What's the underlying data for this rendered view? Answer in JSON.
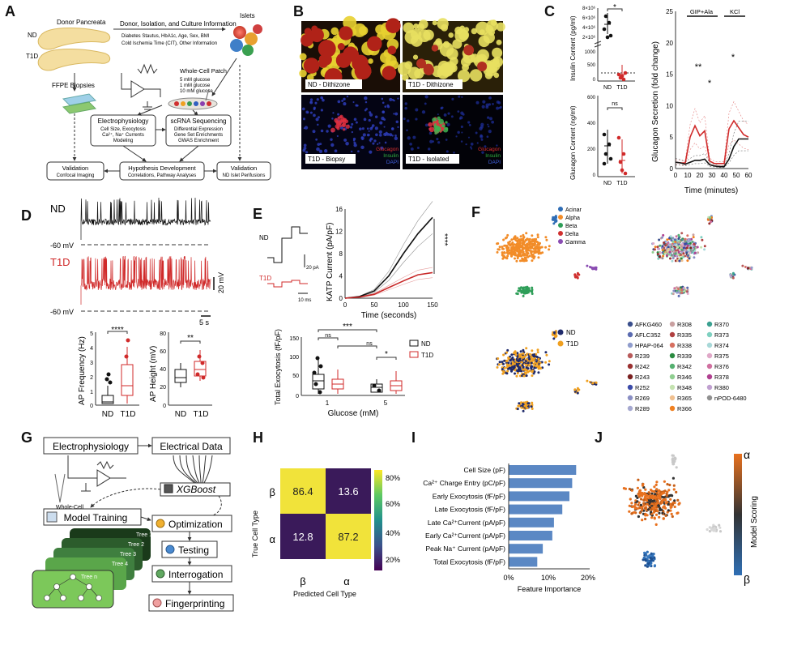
{
  "panel_letters": [
    "A",
    "B",
    "C",
    "D",
    "E",
    "F",
    "G",
    "H",
    "I",
    "J"
  ],
  "A": {
    "donor_pancreata": "Donor Pancreata",
    "nd": "ND",
    "t1d": "T1D",
    "islets": "Islets",
    "donor_info_title": "Donor, Isolation, and Culture Information",
    "donor_info_1": "Diabetes Stautus, HbA1c, Age, Sex, BMI",
    "donor_info_2": "Cold Ischemia Time (CIT), Other Information",
    "ffpe": "FFPE Biopsies",
    "patch": "Whole-Cell Patch",
    "glucose": [
      "5 mM glucose",
      "1 mM glucose",
      "10 mM glucose"
    ],
    "ephys_title": "Electrophysiology",
    "ephys_lines": [
      "Cell Size, Exocytosis",
      "Ca²⁺, Na⁺ Currents",
      "Modeling"
    ],
    "scrna_title": "scRNA Sequencing",
    "scrna_lines": [
      "Differential Expression",
      "Gene Set Enrichments",
      "GWAS Enrichment"
    ],
    "val1_title": "Validation",
    "val1_sub": "Confocal Imaging",
    "hypo_title": "Hypothesis Development",
    "hypo_sub": "Correlations, Pathway Analyses",
    "val2_title": "Validation",
    "val2_sub": "ND Islet Perifusions"
  },
  "B": {
    "labels": [
      "ND - Dithizone",
      "T1D - Dithizone",
      "T1D - Biopsy",
      "T1D - Isolated"
    ],
    "stain": [
      "Glucagon",
      "Insulin",
      "DAPI"
    ]
  },
  "C": {
    "ins_ylabel": "Insulin Content (pg/ml)",
    "ins_ticks_top": [
      "8×10⁶",
      "6×10⁶",
      "4×10⁶",
      "2×10⁶"
    ],
    "ins_ticks_bottom": [
      "1000",
      "500",
      "0"
    ],
    "ins_sig": "*",
    "glu_ylabel": "Glucagon Content (ng/ml)",
    "glu_ticks": [
      "600",
      "400",
      "200",
      "0"
    ],
    "glu_sig": "ns",
    "xcats": [
      "ND",
      "T1D"
    ],
    "sec_ylabel": "Glucagon Secretion (fold change)",
    "sec_xlabel": "Time (minutes)",
    "sec_yticks": [
      "25",
      "20",
      "15",
      "10",
      "5",
      "0"
    ],
    "sec_xticks": [
      "0",
      "10",
      "20",
      "30",
      "40",
      "50",
      "60"
    ],
    "stim1": "GIP+Ala",
    "stim2": "KCl",
    "sig1": "**",
    "sig2": "*",
    "sig3": "*"
  },
  "D": {
    "nd": "ND",
    "t1d": "T1D",
    "mv1": "-60 mV",
    "mv2": "-60 mV",
    "scale_v": "20 mV",
    "scale_t": "5 s",
    "freq_ylabel": "AP Frequency (Hz)",
    "freq_ticks": [
      "5",
      "4",
      "3",
      "2",
      "1",
      "0"
    ],
    "freq_sig": "****",
    "height_ylabel": "AP Height (mV)",
    "height_ticks": [
      "80",
      "60",
      "40",
      "20",
      "0"
    ],
    "height_sig": "**",
    "xcats": [
      "ND",
      "T1D"
    ]
  },
  "E": {
    "nd": "ND",
    "t1d": "T1D",
    "scale_pa": "20 pA",
    "scale_ms": "10 ms",
    "katp_ylabel": "KATP Current (pA/pF)",
    "katp_xlabel": "Time (seconds)",
    "katp_yticks": [
      "16",
      "12",
      "8",
      "4",
      "0"
    ],
    "katp_xticks": [
      "0",
      "50",
      "100",
      "150"
    ],
    "katp_sig": "****",
    "exo_ylabel": "Total Exocytosis (fF/pF)",
    "exo_xlabel": "Glucose (mM)",
    "exo_yticks": [
      "150",
      "100",
      "50",
      "0"
    ],
    "exo_xticks": [
      "1",
      "5"
    ],
    "exo_sig": [
      "ns",
      "***",
      "ns",
      "*"
    ],
    "legend": [
      "ND",
      "T1D"
    ]
  },
  "F": {
    "celltypes": [
      "Acinar",
      "Alpha",
      "Beta",
      "Delta",
      "Gamma"
    ],
    "celltype_colors": [
      "#2f6db5",
      "#f28c28",
      "#2e9e58",
      "#d0302f",
      "#8a4cb2"
    ],
    "status": [
      "ND",
      "T1D"
    ],
    "status_colors": [
      "#1f2a6b",
      "#f0a020"
    ],
    "donors_col1": [
      "AFKG460",
      "AFLC352",
      "HPAP-064",
      "R239",
      "R242",
      "R243",
      "R252",
      "R269",
      "R289"
    ],
    "donors_col2": [
      "R308",
      "R335",
      "R338",
      "R339",
      "R342",
      "R346",
      "R348",
      "R365",
      "R366"
    ],
    "donors_col3": [
      "R370",
      "R373",
      "R374",
      "R375",
      "R376",
      "R378",
      "R380",
      "nPOD-6480"
    ],
    "donor_colors_col1": [
      "#3a4f8c",
      "#5a6bb0",
      "#8f9ccc",
      "#b85a5a",
      "#9a3030",
      "#7a2020",
      "#3b4aa8",
      "#8a8fc4",
      "#a5a8d0"
    ],
    "donor_colors_col2": [
      "#c9a0a0",
      "#b04040",
      "#d77060",
      "#2a8a40",
      "#55b070",
      "#8fce90",
      "#c4e2b0",
      "#f0c090",
      "#f08020"
    ],
    "donor_colors_col3": [
      "#3aa090",
      "#7ed0c0",
      "#a8d8d8",
      "#e0a8c8",
      "#d070a0",
      "#b04090",
      "#c0a0d0",
      "#909090"
    ]
  },
  "G": {
    "ephys": "Electrophysiology",
    "electrical": "Electrical Data",
    "wholecell": "Whole-Cell Patch Clamp",
    "xgboost": "XGBoost",
    "training": "Model Training",
    "optimization": "Optimization",
    "testing": "Testing",
    "interrogation": "Interrogation",
    "fingerprinting": "Fingerprinting",
    "trees": [
      "Tree 1",
      "Tree 2",
      "Tree 3",
      "Tree 4",
      "Tree n"
    ]
  },
  "H": {
    "ylabel": "True Cell Type",
    "xlabel": "Predicted Cell Type",
    "row_labels": [
      "β",
      "α"
    ],
    "col_labels": [
      "β",
      "α"
    ],
    "cbar_ticks": [
      "80%",
      "60%",
      "40%",
      "20%"
    ]
  },
  "I": {
    "xlabel": "Feature Importance",
    "xticks": [
      "0%",
      "10%",
      "20%"
    ]
  },
  "J": {
    "cbar_label": "Model Scoring",
    "top": "α",
    "bottom": "β"
  },
  "chart_data": [
    {
      "id": "confusion_matrix",
      "type": "heatmap",
      "rows": [
        "β",
        "α"
      ],
      "cols": [
        "β",
        "α"
      ],
      "values": [
        [
          86.4,
          13.6
        ],
        [
          12.8,
          87.2
        ]
      ],
      "xlabel": "Predicted Cell Type",
      "ylabel": "True Cell Type"
    },
    {
      "id": "feature_importance",
      "type": "bar",
      "orientation": "horizontal",
      "categories": [
        "Cell Size (pF)",
        "Ca²⁺ Charge Entry (pC/pF)",
        "Early Exocytosis (fF/pF)",
        "Late Exocytosis (fF/pF)",
        "Late Ca²⁺Current (pA/pF)",
        "Early Ca²⁺Current (pA/pF)",
        "Peak Na⁺ Current (pA/pF)",
        "Total Exocytosis (fF/pF)"
      ],
      "values": [
        17.0,
        16.0,
        15.3,
        13.5,
        11.4,
        11.0,
        8.6,
        7.2
      ],
      "xlabel": "Feature Importance",
      "xlim": [
        0,
        20
      ],
      "color": "#5b88c4"
    },
    {
      "id": "glucagon_secretion",
      "type": "line",
      "x": [
        0,
        4,
        8,
        12,
        16,
        20,
        24,
        28,
        32,
        36,
        40,
        44,
        48,
        52,
        56,
        60
      ],
      "series": [
        {
          "values": [
            1.0,
            0.9,
            0.9,
            5.0,
            6.8,
            5.2,
            6.0,
            1.2,
            0.8,
            0.8,
            0.8,
            6.3,
            7.6,
            6.5,
            5.4,
            5.0
          ],
          "color": "#d02a2a"
        },
        {
          "values": [
            1.0,
            0.9,
            0.7,
            1.0,
            1.3,
            1.3,
            1.5,
            0.6,
            0.4,
            0.3,
            0.3,
            1.5,
            3.5,
            4.7,
            4.7,
            4.7
          ],
          "color": "#111111"
        }
      ],
      "xlabel": "Time (minutes)",
      "ylabel": "Glucagon Secretion (fold change)",
      "xlim": [
        0,
        60
      ],
      "ylim": [
        0,
        25
      ]
    },
    {
      "id": "katp_current",
      "type": "line",
      "x": [
        0,
        25,
        50,
        75,
        100,
        125,
        150
      ],
      "series": [
        {
          "name": "ND",
          "values": [
            0.0,
            0.3,
            1.3,
            4.0,
            8.0,
            11.6,
            14.5
          ],
          "color": "#111111"
        },
        {
          "name": "T1D",
          "values": [
            0.0,
            0.2,
            0.7,
            1.9,
            3.1,
            4.2,
            4.6
          ],
          "color": "#c82828"
        }
      ],
      "xlabel": "Time (seconds)",
      "ylabel": "KATP Current (pA/pF)",
      "xlim": [
        0,
        150
      ],
      "ylim": [
        0,
        16
      ]
    }
  ]
}
